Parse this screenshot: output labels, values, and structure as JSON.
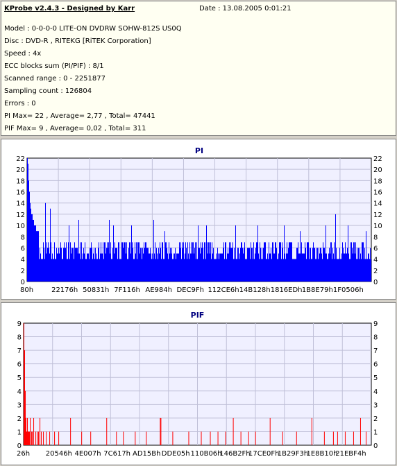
{
  "header": {
    "title": "KProbe v2.4.3 - Designed by Karr",
    "date_label": "Date : 13.08.2005 0:01:21"
  },
  "info": {
    "lines": [
      "Model : 0-0-0-0 LITE-ON DVDRW SOHW-812S  US0Q",
      "Disc : DVD-R , RITEKG [RiTEK Corporation]",
      "Speed : 4x",
      "ECC blocks sum (PI/PIF) : 8/1",
      "Scanned range : 0 - 2251877",
      "Sampling count : 126804",
      "Errors : 0",
      "PI Max= 22 , Average= 2,77 , Total= 47441",
      "PIF Max= 9 , Average= 0,02 , Total= 311"
    ]
  },
  "colors": {
    "pi_bar": "#0000ff",
    "pif_bar": "#ff0000",
    "plot_bg": "#f0f0ff",
    "grid": "#c0c0d8",
    "title_pi": "#000080",
    "title_pif": "#000080"
  },
  "chart_data": [
    {
      "type": "bar",
      "title": "PI",
      "xlabel": "",
      "ylabel": "",
      "ylim": [
        0,
        22
      ],
      "y_ticks": [
        0,
        2,
        4,
        6,
        8,
        10,
        12,
        14,
        16,
        18,
        20,
        22
      ],
      "x_tick_labels": [
        "80h",
        "22176h",
        "50831h",
        "7F116h",
        "AE984h",
        "DEC9Fh",
        "112CE6h",
        "14B128h",
        "1816EDh",
        "1B8E79h",
        "1F0506h"
      ],
      "grid": true,
      "series": [
        {
          "values_summary": "dense per-sample PI error counts across scanned range",
          "start_profile": [
            22,
            21,
            18,
            16,
            14,
            13,
            12,
            12,
            11,
            11,
            10,
            10,
            10,
            9,
            9,
            9,
            9
          ],
          "baseline_min": 4,
          "baseline_max": 7,
          "peaks": [
            {
              "x_index": 26,
              "value": 14
            },
            {
              "x_index": 33,
              "value": 13
            },
            {
              "x_index": 60,
              "value": 10
            },
            {
              "x_index": 74,
              "value": 11
            },
            {
              "x_index": 118,
              "value": 11
            },
            {
              "x_index": 124,
              "value": 10
            },
            {
              "x_index": 150,
              "value": 10
            },
            {
              "x_index": 182,
              "value": 11
            },
            {
              "x_index": 198,
              "value": 9
            },
            {
              "x_index": 246,
              "value": 10
            },
            {
              "x_index": 258,
              "value": 10
            },
            {
              "x_index": 300,
              "value": 10
            },
            {
              "x_index": 332,
              "value": 10
            },
            {
              "x_index": 370,
              "value": 10
            },
            {
              "x_index": 393,
              "value": 9
            },
            {
              "x_index": 430,
              "value": 10
            },
            {
              "x_index": 444,
              "value": 12
            },
            {
              "x_index": 462,
              "value": 10
            },
            {
              "x_index": 488,
              "value": 9
            }
          ]
        }
      ]
    },
    {
      "type": "bar",
      "title": "PIF",
      "xlabel": "",
      "ylabel": "",
      "ylim": [
        0,
        9
      ],
      "y_ticks": [
        0,
        1,
        2,
        3,
        4,
        5,
        6,
        7,
        8,
        9
      ],
      "x_tick_labels": [
        "26h",
        "20546h",
        "4E007h",
        "7C617h",
        "AD15Bh",
        "DDE05h",
        "110B06h",
        "146B2Fh",
        "17CE0Fh",
        "1B29F3h",
        "1E8B10h",
        "21EBF4h"
      ],
      "grid": true,
      "series": [
        {
          "points": [
            [
              0,
              9
            ],
            [
              1,
              7
            ],
            [
              2,
              4
            ],
            [
              3,
              2
            ],
            [
              4,
              1
            ],
            [
              5,
              2
            ],
            [
              6,
              1
            ],
            [
              7,
              1
            ],
            [
              8,
              1
            ],
            [
              9,
              2
            ],
            [
              11,
              1
            ],
            [
              12,
              1
            ],
            [
              14,
              2
            ],
            [
              17,
              1
            ],
            [
              19,
              1
            ],
            [
              21,
              1
            ],
            [
              23,
              2
            ],
            [
              25,
              1
            ],
            [
              28,
              1
            ],
            [
              32,
              1
            ],
            [
              37,
              1
            ],
            [
              44,
              1
            ],
            [
              50,
              1
            ],
            [
              67,
              2
            ],
            [
              83,
              1
            ],
            [
              96,
              1
            ],
            [
              119,
              2
            ],
            [
              133,
              1
            ],
            [
              143,
              1
            ],
            [
              160,
              1
            ],
            [
              176,
              1
            ],
            [
              196,
              2
            ],
            [
              197,
              2
            ],
            [
              214,
              1
            ],
            [
              237,
              1
            ],
            [
              255,
              1
            ],
            [
              268,
              1
            ],
            [
              279,
              1
            ],
            [
              290,
              1
            ],
            [
              301,
              2
            ],
            [
              312,
              1
            ],
            [
              323,
              1
            ],
            [
              333,
              1
            ],
            [
              354,
              2
            ],
            [
              372,
              1
            ],
            [
              392,
              1
            ],
            [
              414,
              2
            ],
            [
              432,
              1
            ],
            [
              445,
              1
            ],
            [
              451,
              1
            ],
            [
              462,
              1
            ],
            [
              474,
              1
            ],
            [
              484,
              2
            ],
            [
              492,
              1
            ]
          ]
        }
      ]
    }
  ]
}
